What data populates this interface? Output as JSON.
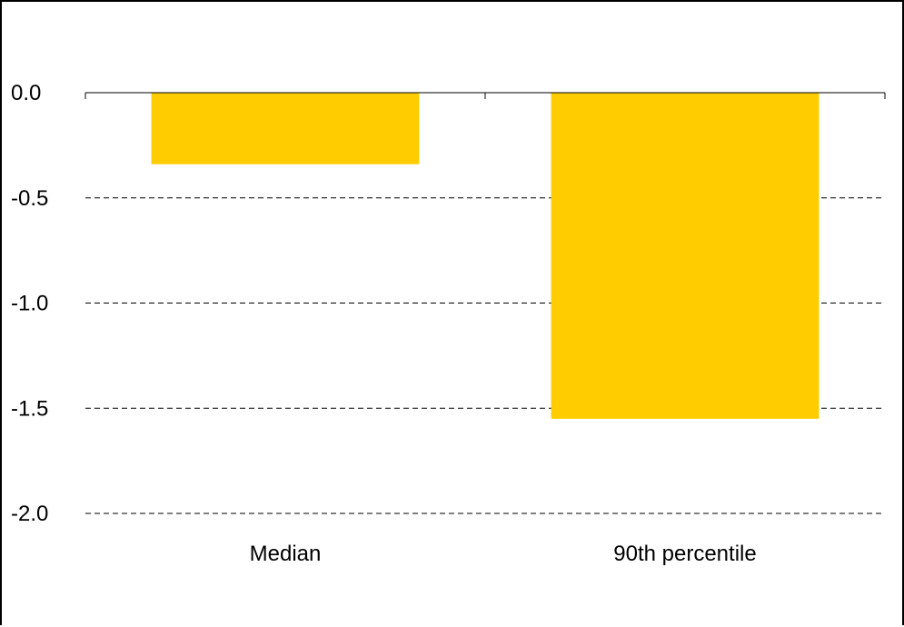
{
  "chart_data": {
    "type": "bar",
    "title": "",
    "xlabel": "",
    "ylabel": "",
    "categories": [
      "Median",
      "90th percentile"
    ],
    "values": [
      -0.34,
      -1.55
    ],
    "ylim": [
      -2.0,
      0.0
    ],
    "yticks": [
      0.0,
      -0.5,
      -1.0,
      -1.5,
      -2.0
    ],
    "ytick_labels": [
      "0.0",
      "-0.5",
      "-1.0",
      "-1.5",
      "-2.0"
    ],
    "grid": "horizontal dashed",
    "legend": "none",
    "colors": {
      "bar": "#FFCC00",
      "grid": "#000000",
      "axis": "#000000",
      "frame": "#000000"
    }
  }
}
